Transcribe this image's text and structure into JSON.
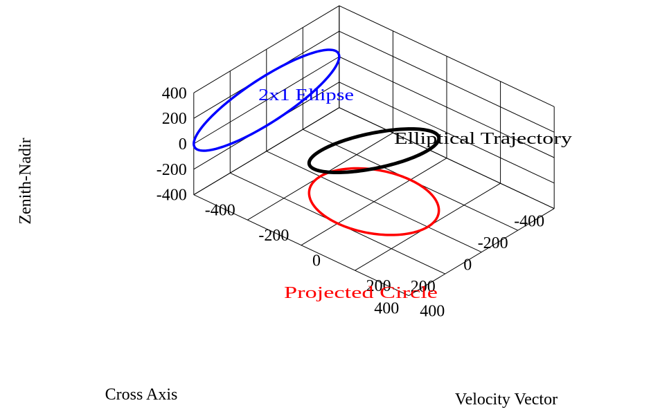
{
  "chart_data": {
    "type": "line3d",
    "xlabel": "Velocity Vector",
    "ylabel": "Cross Axis",
    "zlabel": "Zenith-Nadir",
    "xlim": [
      -400,
      400
    ],
    "ylim": [
      -400,
      400
    ],
    "zlim": [
      -400,
      400
    ],
    "x_ticks": [
      400,
      200,
      0,
      -200,
      -400
    ],
    "y_ticks": [
      400,
      200,
      0,
      -200,
      -400
    ],
    "z_ticks": [
      400,
      200,
      0,
      -200,
      -400
    ],
    "x_tick_labels": [
      "400",
      "200",
      "0",
      "-200",
      "-400"
    ],
    "y_tick_labels": [
      "400",
      "200",
      "0",
      "-200",
      "-400"
    ],
    "z_tick_labels": [
      "400",
      "200",
      "0",
      "-200",
      "-400"
    ],
    "grid": true,
    "series": [
      {
        "name": "Elliptical Trajectory",
        "color": "#000000",
        "curve": "ellipse_xy_circle_tilted",
        "center": [
          0,
          0,
          0
        ],
        "radius_xy": 200,
        "z_amplitude": 200
      },
      {
        "name": "2x1 Ellipse",
        "color": "#0000ff",
        "curve": "ellipse_2x1_on_back_wall",
        "center": [
          0,
          0,
          0
        ],
        "semi_axes": [
          400,
          200
        ]
      },
      {
        "name": "Projected Circle",
        "color": "#ff0000",
        "curve": "circle_on_floor",
        "center": [
          0,
          0,
          -400
        ],
        "radius": 200
      }
    ],
    "annotations": [
      {
        "text": "2x1 Ellipse",
        "color": "#0000ff"
      },
      {
        "text": "Elliptical Trajectory",
        "color": "#000000"
      },
      {
        "text": "Projected Circle",
        "color": "#ff0000"
      }
    ]
  }
}
